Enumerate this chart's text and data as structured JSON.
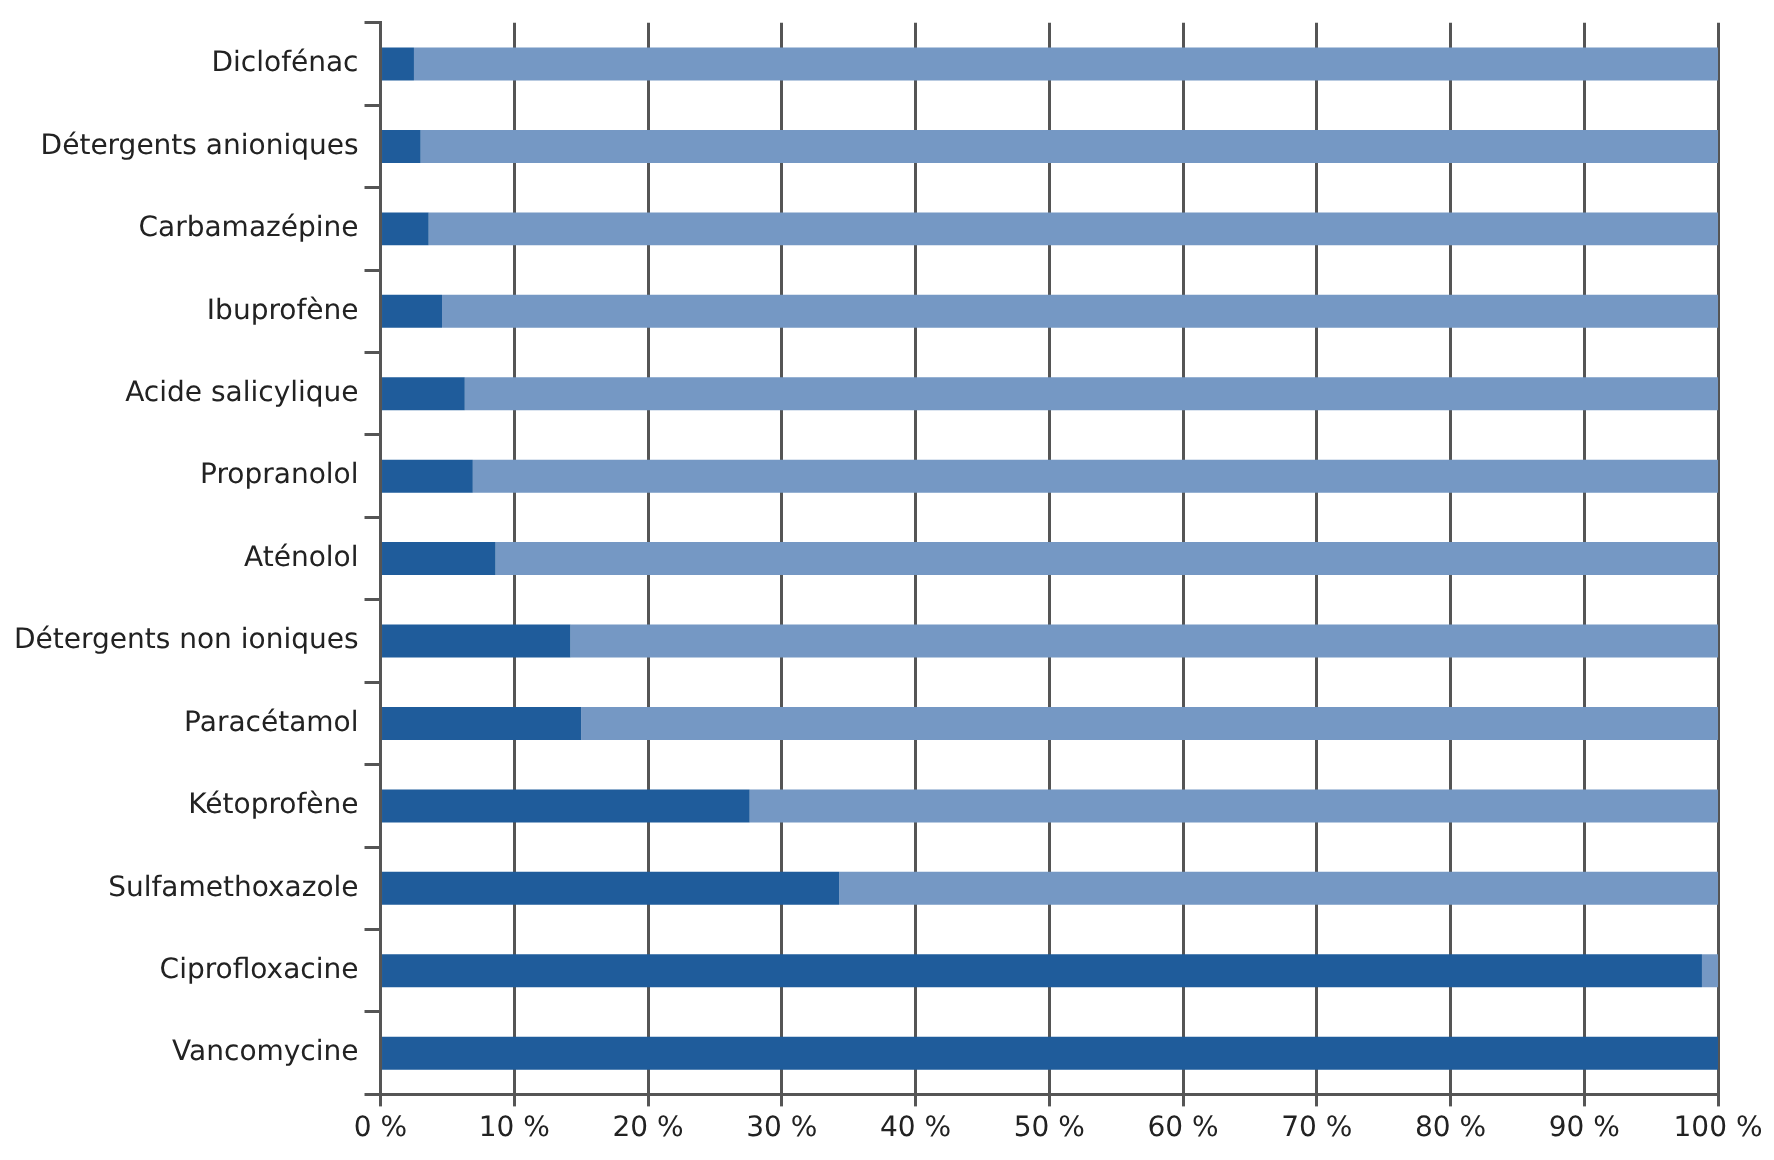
{
  "chart_data": {
    "type": "bar",
    "orientation": "horizontal",
    "stacked": true,
    "categories": [
      "Diclofénac",
      "Détergents anioniques",
      "Carbamazépine",
      "Ibuprofène",
      "Acide salicylique",
      "Propranolol",
      "Aténolol",
      "Détergents non ioniques",
      "Paracétamol",
      "Kétoprofène",
      "Sulfamethoxazole",
      "Ciprofloxacine",
      "Vancomycine"
    ],
    "series": [
      {
        "color": "#1f5c9b",
        "values": [
          2.5,
          3.0,
          3.6,
          4.6,
          6.3,
          6.9,
          8.6,
          14.2,
          15.0,
          27.6,
          34.3,
          98.8,
          100
        ]
      },
      {
        "color": "#7598c4",
        "values": [
          97.5,
          97.0,
          96.4,
          95.4,
          93.7,
          93.1,
          91.4,
          85.8,
          85.0,
          72.4,
          65.7,
          1.2,
          0
        ]
      }
    ],
    "xlim": [
      0,
      100
    ],
    "xticks": [
      {
        "value": 0,
        "label": "0 %"
      },
      {
        "value": 10,
        "label": "10 %"
      },
      {
        "value": 20,
        "label": "20 %"
      },
      {
        "value": 30,
        "label": "30 %"
      },
      {
        "value": 40,
        "label": "40 %"
      },
      {
        "value": 50,
        "label": "50 %"
      },
      {
        "value": 60,
        "label": "60 %"
      },
      {
        "value": 70,
        "label": "70 %"
      },
      {
        "value": 80,
        "label": "80 %"
      },
      {
        "value": 90,
        "label": "90 %"
      },
      {
        "value": 100,
        "label": "100 %"
      }
    ],
    "grid": "x",
    "legend": false
  }
}
